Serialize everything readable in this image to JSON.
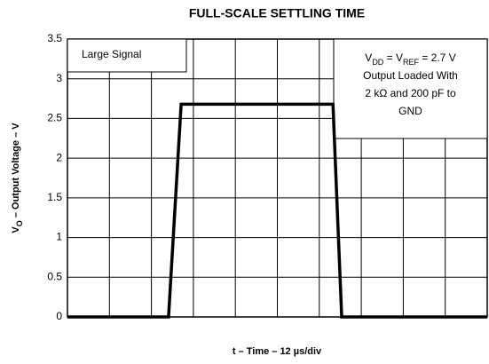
{
  "chart_data": {
    "type": "line",
    "title": "FULL-SCALE SETTLING TIME",
    "xlabel": "t – Time – 12 µs/div",
    "ylabel_parts": [
      "V",
      "O",
      " – Output Voltage – V"
    ],
    "x": [
      0,
      28.9,
      32.5,
      75.9,
      78.4,
      120
    ],
    "series": [
      {
        "color": "#000000",
        "values": [
          0,
          0,
          2.68,
          2.68,
          0,
          0
        ]
      }
    ],
    "xlim": [
      0,
      120
    ],
    "xticks": [
      0,
      12,
      24,
      36,
      48,
      60,
      72,
      84,
      96,
      108,
      120
    ],
    "ylim": [
      0,
      3.5
    ],
    "yticks": [
      0,
      0.5,
      1,
      1.5,
      2,
      2.5,
      3,
      3.5
    ],
    "grid": true,
    "annotations": [
      "Large Signal"
    ],
    "note_box": {
      "lines": [
        [
          "V",
          "DD",
          " = V",
          "REF",
          " = 2.7 V"
        ],
        "Output Loaded With",
        "2 kΩ and 200 pF to",
        "GND"
      ]
    }
  }
}
